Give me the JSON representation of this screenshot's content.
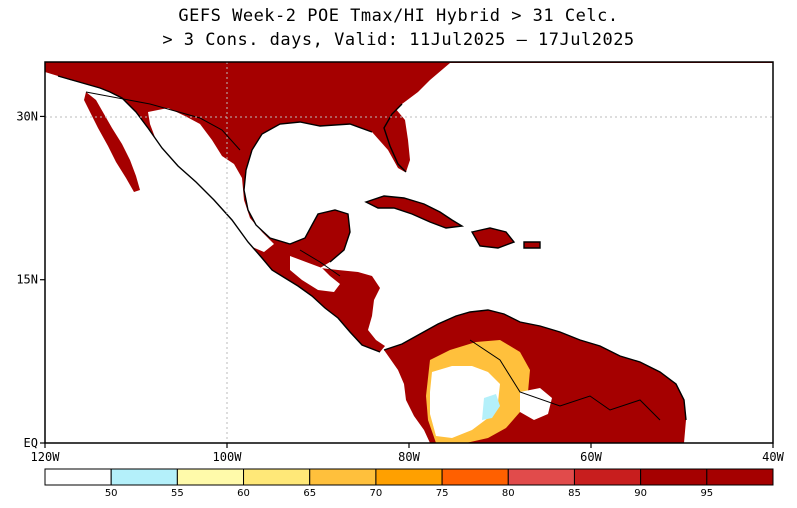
{
  "title": {
    "line1": "GEFS Week-2 POE Tmax/HI Hybrid > 31 Celc.",
    "line2": "> 3 Cons. days, Valid: 11Jul2025 – 17Jul2025"
  },
  "map": {
    "lon_range": [
      -120,
      -40
    ],
    "lat_range": [
      0,
      35
    ],
    "lat_ticks": [
      {
        "value": 30,
        "label": "30N"
      },
      {
        "value": 15,
        "label": "15N"
      },
      {
        "value": 0,
        "label": "EQ"
      }
    ],
    "lon_ticks": [
      {
        "value": -120,
        "label": "120W"
      },
      {
        "value": -100,
        "label": "100W"
      },
      {
        "value": -80,
        "label": "80W"
      },
      {
        "value": -60,
        "label": "60W"
      },
      {
        "value": -40,
        "label": "40W"
      }
    ]
  },
  "colorbar": {
    "labels": [
      "50",
      "55",
      "60",
      "65",
      "70",
      "75",
      "80",
      "85",
      "90",
      "95"
    ],
    "colors": [
      "#ffffff",
      "#b4f0fa",
      "#fffaaa",
      "#ffe878",
      "#ffc03c",
      "#ffa000",
      "#ff6000",
      "#e14b4b",
      "#c81e1e",
      "#a50000",
      "#a50000"
    ]
  },
  "colors": {
    "high_prob": "#a50000",
    "mid_prob": "#e14b4b",
    "low_prob": "#ffc03c",
    "land_outline": "#000000",
    "background": "#ffffff"
  }
}
